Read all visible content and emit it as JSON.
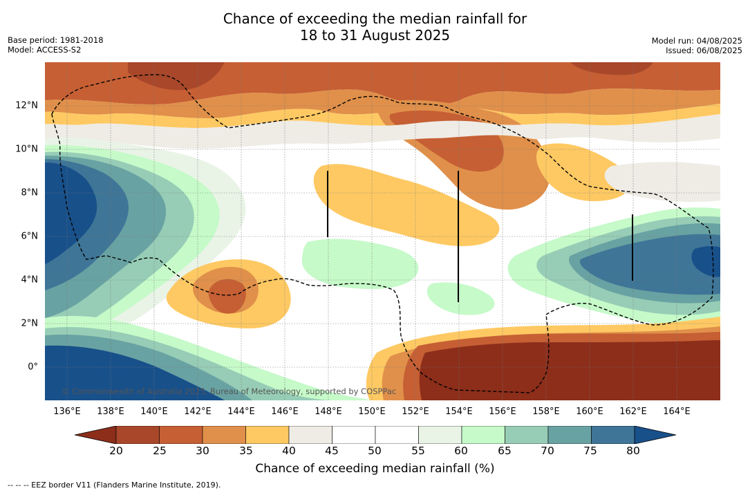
{
  "title": {
    "line1": "Chance of exceeding the median rainfall for",
    "line2": "18 to 31 August 2025"
  },
  "meta_left": {
    "base_period": "Base period: 1981-2018",
    "model": "Model: ACCESS-S2"
  },
  "meta_right": {
    "model_run": "Model run: 04/08/2025",
    "issued": "Issued: 06/08/2025"
  },
  "map": {
    "lat_labels": [
      "12°N",
      "10°N",
      "8°N",
      "6°N",
      "4°N",
      "2°N",
      "0°"
    ],
    "lon_labels": [
      "136°E",
      "138°E",
      "140°E",
      "142°E",
      "144°E",
      "146°E",
      "148°E",
      "150°E",
      "152°E",
      "154°E",
      "156°E",
      "158°E",
      "160°E",
      "162°E",
      "164°E"
    ],
    "copyright": "© Commonwealth of Australia 2025, Bureau of Meteorology, supported by COSPPac"
  },
  "colorbar": {
    "ticks": [
      "20",
      "25",
      "30",
      "35",
      "40",
      "45",
      "50",
      "55",
      "60",
      "65",
      "70",
      "75",
      "80"
    ],
    "colors": [
      "#8c2e1a",
      "#a8472a",
      "#c65f34",
      "#e0904a",
      "#fec963",
      "#efece6",
      "#ffffff",
      "#ffffff",
      "#e9f4e7",
      "#c6fac9",
      "#97cdb6",
      "#69a2a2",
      "#3f7597",
      "#18508a"
    ],
    "label": "Chance of exceeding median rainfall (%)"
  },
  "footnote": "--  --  -- EEZ border V11 (Flanders Marine Institute, 2019)."
}
